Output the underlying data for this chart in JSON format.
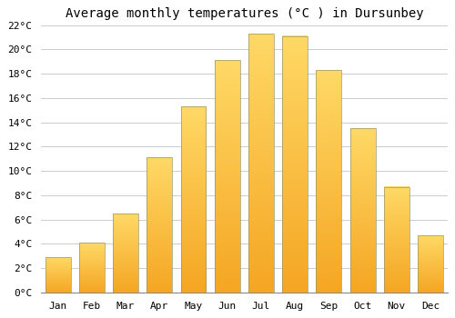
{
  "title": "Average monthly temperatures (°C ) in Dursunbey",
  "months": [
    "Jan",
    "Feb",
    "Mar",
    "Apr",
    "May",
    "Jun",
    "Jul",
    "Aug",
    "Sep",
    "Oct",
    "Nov",
    "Dec"
  ],
  "temperatures": [
    2.9,
    4.1,
    6.5,
    11.1,
    15.3,
    19.1,
    21.3,
    21.1,
    18.3,
    13.5,
    8.7,
    4.7
  ],
  "bar_color_bottom": "#F5A623",
  "bar_color_top": "#FFD966",
  "bar_edge_color": "#B8860B",
  "background_color": "#FFFFFF",
  "grid_color": "#CCCCCC",
  "title_fontsize": 10,
  "tick_fontsize": 8,
  "ylim": [
    0,
    22
  ],
  "yticks": [
    0,
    2,
    4,
    6,
    8,
    10,
    12,
    14,
    16,
    18,
    20,
    22
  ],
  "bar_width": 0.75
}
